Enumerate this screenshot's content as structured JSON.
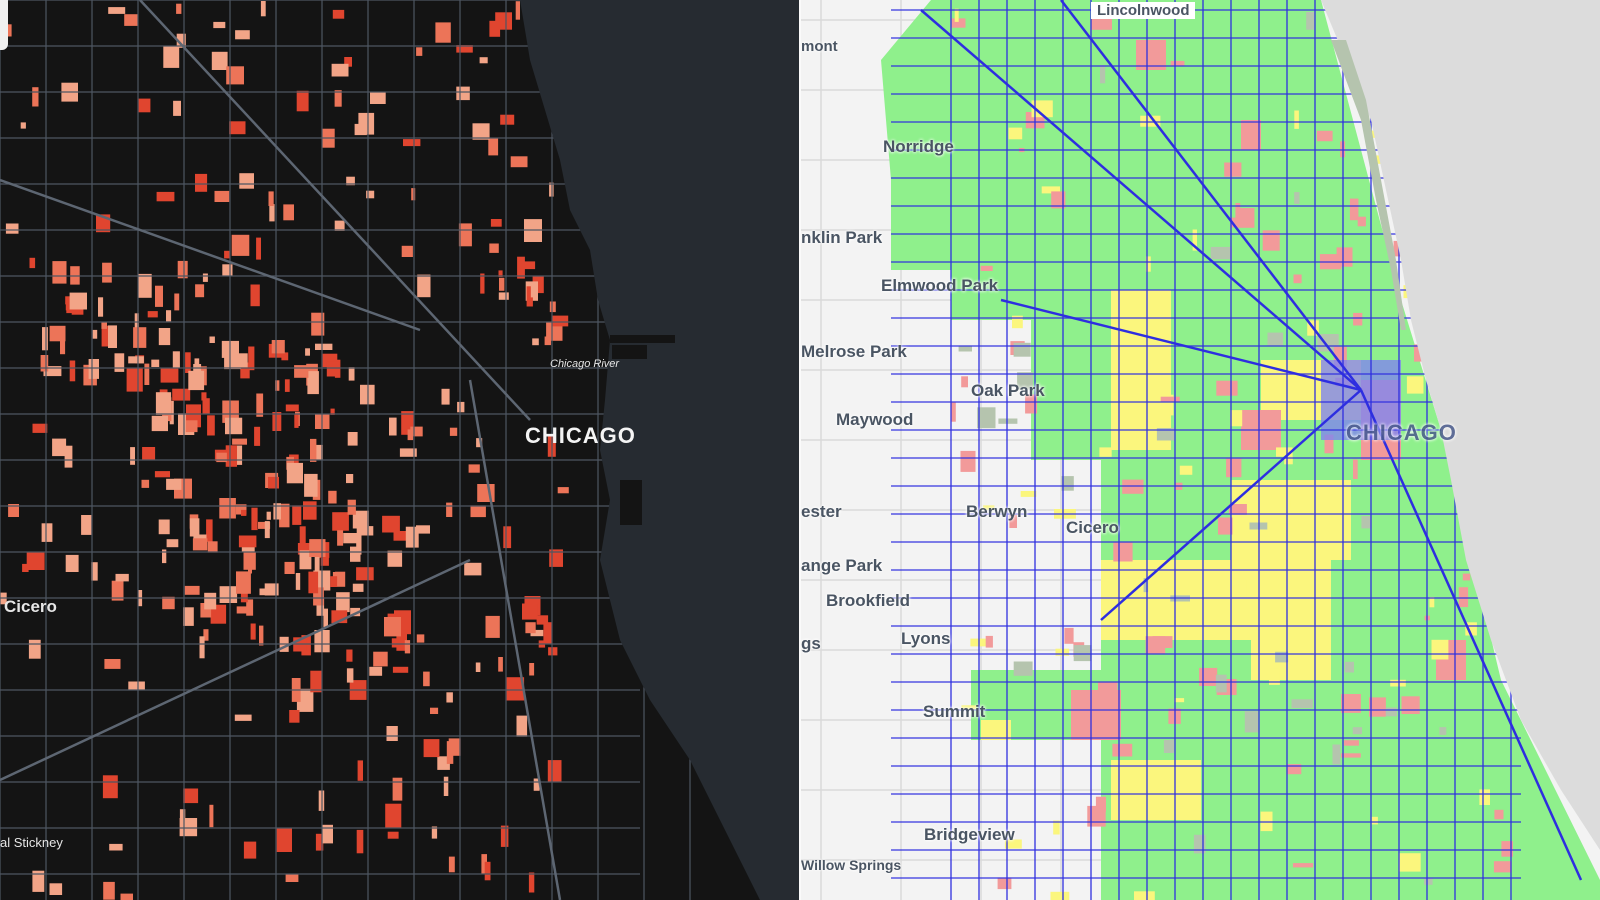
{
  "left_map": {
    "labels": {
      "chicago": "CHICAGO",
      "chicago_river": "Chicago River",
      "cicero": "Cicero",
      "stickney": "al Stickney"
    },
    "colors": {
      "land": "#141414",
      "lake": "#262b31",
      "parcel_light": "#f2a487",
      "parcel_mid": "#ec7458",
      "parcel_dark": "#e0452f",
      "road": "#4e5662"
    }
  },
  "right_map": {
    "labels": {
      "chicago": "CHICAGO",
      "lincolnwood": "Lincolnwood",
      "mont": "mont",
      "norridge": "Norridge",
      "franklin_park": "nklin Park",
      "elmwood_park": "Elmwood Park",
      "melrose_park": "Melrose Park",
      "oak_park": "Oak Park",
      "maywood": "Maywood",
      "ester": "ester",
      "berwyn": "Berwyn",
      "cicero": "Cicero",
      "lagrange_park": "ange Park",
      "brookfield": "Brookfield",
      "gs": "gs",
      "lyons": "Lyons",
      "summit": "Summit",
      "bridgeview": "Bridgeview",
      "willow_springs": "Willow Springs"
    },
    "colors": {
      "land": "#f3f3f3",
      "lake": "#dcdcdc",
      "green": "#8ff08c",
      "yellow": "#fbf67d",
      "pink": "#f29a9a",
      "blue": "#2e2ee0",
      "gray": "#b5c4ae"
    }
  }
}
